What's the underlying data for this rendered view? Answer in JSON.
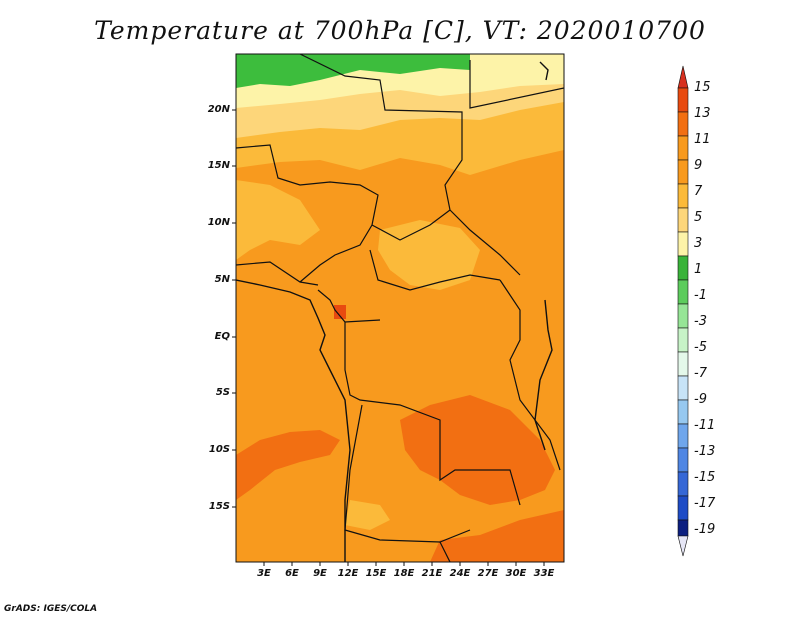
{
  "title": "Temperature at 700hPa [C], VT: 2020010700",
  "credit": "GrADS: IGES/COLA",
  "map": {
    "lat_labels": [
      "20N",
      "15N",
      "10N",
      "5N",
      "EQ",
      "5S",
      "10S",
      "15S"
    ],
    "lon_labels": [
      "3E",
      "6E",
      "9E",
      "12E",
      "15E",
      "18E",
      "21E",
      "24E",
      "27E",
      "30E",
      "33E"
    ]
  },
  "colorbar": {
    "labels": [
      "15",
      "13",
      "11",
      "9",
      "7",
      "5",
      "3",
      "1",
      "-1",
      "-3",
      "-5",
      "-7",
      "-9",
      "-11",
      "-13",
      "-15",
      "-17",
      "-19"
    ],
    "colors": [
      "#d7301f",
      "#e84a10",
      "#f26f12",
      "#f89a1e",
      "#fbba3a",
      "#fdd67a",
      "#fdf3a8",
      "#39b339",
      "#5ccc5c",
      "#96e596",
      "#c7f3c7",
      "#e4f8ea",
      "#c7e3f7",
      "#96c8f0",
      "#6fa6ec",
      "#4f86e3",
      "#3567d6",
      "#1e4cc6",
      "#1534a8",
      "#0c1f80"
    ]
  },
  "colors": {
    "green": "#3dbd3d",
    "pale_yellow": "#fdf3a8",
    "light_orange": "#fdd67a",
    "tan": "#fbba3a",
    "orange": "#f89a1e",
    "dark_orange": "#f26f12",
    "red_orange": "#e84a10"
  }
}
